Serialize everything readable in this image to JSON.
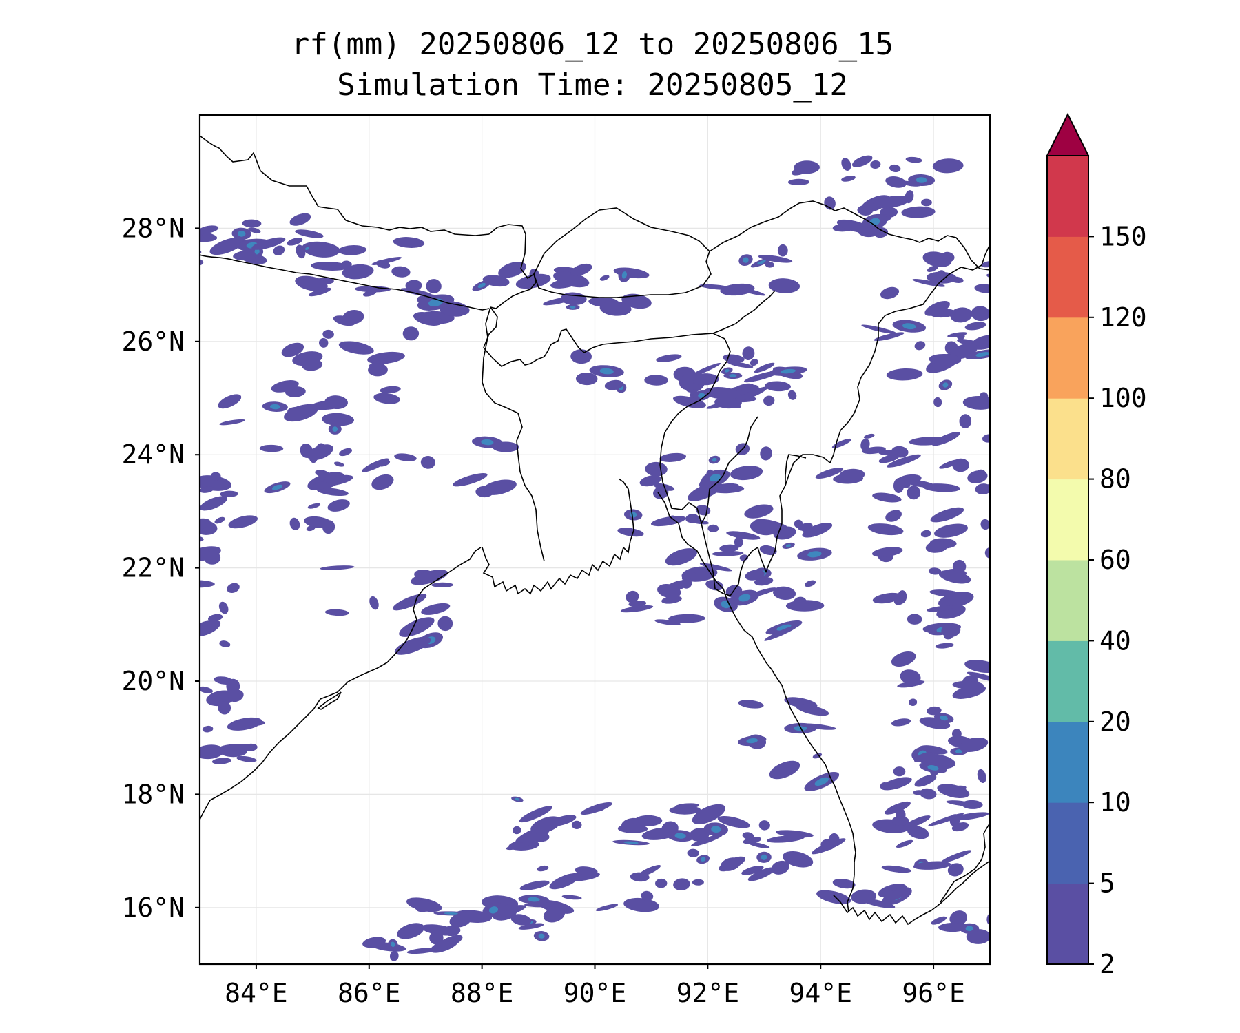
{
  "title_line1": "rf(mm) 20250806_12 to 20250806_15",
  "title_line2": "Simulation Time: 20250805_12",
  "map": {
    "lon_range": [
      83.0,
      97.0
    ],
    "lat_range": [
      15.0,
      30.0
    ],
    "grid": true,
    "lon_ticks": [
      {
        "value": 84,
        "label": "84°E"
      },
      {
        "value": 86,
        "label": "86°E"
      },
      {
        "value": 88,
        "label": "88°E"
      },
      {
        "value": 90,
        "label": "90°E"
      },
      {
        "value": 92,
        "label": "92°E"
      },
      {
        "value": 94,
        "label": "94°E"
      },
      {
        "value": 96,
        "label": "96°E"
      }
    ],
    "lat_ticks": [
      {
        "value": 16,
        "label": "16°N"
      },
      {
        "value": 18,
        "label": "18°N"
      },
      {
        "value": 20,
        "label": "20°N"
      },
      {
        "value": 22,
        "label": "22°N"
      },
      {
        "value": 24,
        "label": "24°N"
      },
      {
        "value": 26,
        "label": "26°N"
      },
      {
        "value": 28,
        "label": "28°N"
      }
    ]
  },
  "colorbar": {
    "levels": [
      "2",
      "5",
      "10",
      "20",
      "40",
      "60",
      "80",
      "100",
      "120",
      "150"
    ],
    "colors": [
      "#5a4fa3",
      "#4a63b0",
      "#3c85bd",
      "#62bba8",
      "#bce2a0",
      "#f3fbad",
      "#fbe08c",
      "#f9a35c",
      "#e55b49",
      "#d1384c"
    ],
    "extend_color": "#9e0142",
    "extend": "max"
  },
  "rain_color": "#5a4fa3",
  "rain_high_color": "#3f87be"
}
